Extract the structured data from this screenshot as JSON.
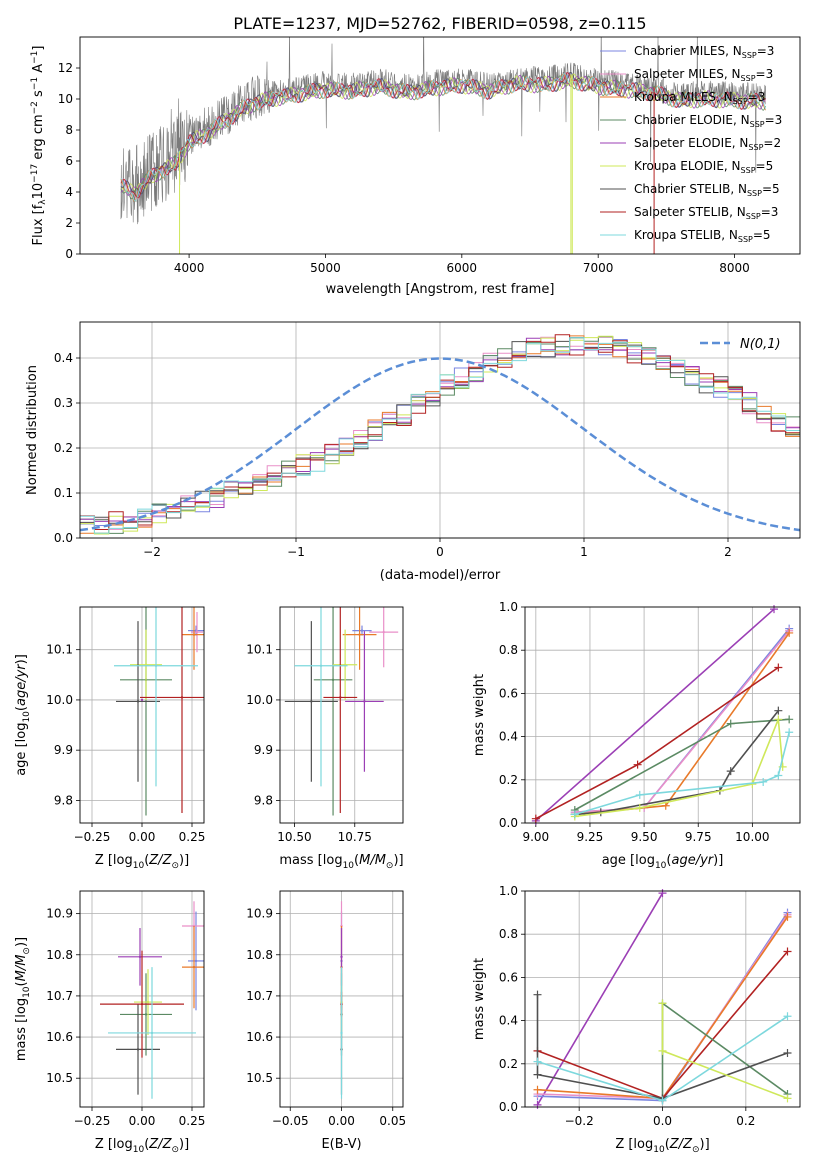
{
  "figure_title": "PLATE=1237, MJD=52762, FIBERID=0598, z=0.115",
  "colors": {
    "chabrier_miles": "#7b86e0",
    "salpeter_miles": "#e98fc8",
    "kroupa_miles": "#e87a2a",
    "chabrier_elodie": "#5b8a63",
    "salpeter_elodie": "#9b3fb5",
    "kroupa_elodie": "#cfe85a",
    "chabrier_stelib": "#505050",
    "salpeter_stelib": "#b22222",
    "kroupa_stelib": "#7dd8dd",
    "normal_curve": "#5b8ed6"
  },
  "chart_data": [
    {
      "id": "spectrum",
      "type": "line",
      "xlabel": "wavelength [Angstrom, rest frame]",
      "ylabel": "Flux [f_λ10^-17 erg cm^-2 s^-1 A^-1]",
      "xlim": [
        3200,
        8480
      ],
      "ylim": [
        0,
        14
      ],
      "xticks": [
        4000,
        5000,
        6000,
        7000,
        8000
      ],
      "yticks": [
        0,
        2,
        4,
        6,
        8,
        10,
        12
      ],
      "grid": false,
      "legend_position": "top-right",
      "wavelength_range": [
        3500,
        8230
      ],
      "continuum_x": [
        3500,
        3600,
        3700,
        3800,
        3900,
        4000,
        4100,
        4200,
        4300,
        4400,
        4500,
        4600,
        4800,
        5000,
        5200,
        5400,
        5600,
        5800,
        6000,
        6200,
        6400,
        6600,
        6800,
        7000,
        7200,
        7400,
        7600,
        7800,
        8000,
        8230
      ],
      "continuum_y": [
        4.8,
        4.3,
        5.2,
        5.8,
        6.2,
        7.6,
        8.0,
        8.6,
        9.2,
        9.8,
        10.2,
        10.4,
        10.7,
        11.0,
        10.9,
        11.2,
        10.8,
        11.1,
        11.3,
        10.9,
        11.4,
        11.3,
        11.6,
        11.2,
        11.0,
        10.8,
        10.3,
        10.4,
        10.3,
        10.2
      ],
      "series": [
        {
          "name": "Chabrier MILES, N_SSP=3",
          "label_main": "Chabrier MILES, N",
          "label_sub": "SSP",
          "label_tail": "=3",
          "color_key": "chabrier_miles"
        },
        {
          "name": "Salpeter MILES, N_SSP=3",
          "label_main": "Salpeter MILES, N",
          "label_sub": "SSP",
          "label_tail": "=3",
          "color_key": "salpeter_miles"
        },
        {
          "name": "Kroupa MILES, N_SSP=3",
          "label_main": "Kroupa MILES, N",
          "label_sub": "SSP",
          "label_tail": "=3",
          "color_key": "kroupa_miles"
        },
        {
          "name": "Chabrier ELODIE, N_SSP=3",
          "label_main": "Chabrier ELODIE, N",
          "label_sub": "SSP",
          "label_tail": "=3",
          "color_key": "chabrier_elodie"
        },
        {
          "name": "Salpeter ELODIE, N_SSP=2",
          "label_main": "Salpeter ELODIE, N",
          "label_sub": "SSP",
          "label_tail": "=2",
          "color_key": "salpeter_elodie"
        },
        {
          "name": "Kroupa ELODIE, N_SSP=5",
          "label_main": "Kroupa ELODIE, N",
          "label_sub": "SSP",
          "label_tail": "=5",
          "color_key": "kroupa_elodie"
        },
        {
          "name": "Chabrier STELIB, N_SSP=5",
          "label_main": "Chabrier STELIB, N",
          "label_sub": "SSP",
          "label_tail": "=5",
          "color_key": "chabrier_stelib"
        },
        {
          "name": "Salpeter STELIB, N_SSP=3",
          "label_main": "Salpeter STELIB, N",
          "label_sub": "SSP",
          "label_tail": "=3",
          "color_key": "salpeter_stelib"
        },
        {
          "name": "Kroupa STELIB, N_SSP=5",
          "label_main": "Kroupa STELIB, N",
          "label_sub": "SSP",
          "label_tail": "=5",
          "color_key": "kroupa_stelib"
        }
      ],
      "model_dropouts": [
        {
          "color_key": "kroupa_elodie",
          "x": 3930
        },
        {
          "color_key": "kroupa_elodie",
          "x": 6800
        },
        {
          "color_key": "kroupa_elodie",
          "x": 6810
        },
        {
          "color_key": "salpeter_stelib",
          "x": 7410
        }
      ]
    },
    {
      "id": "residual_histogram",
      "type": "histogram",
      "xlabel": "(data-model)/error",
      "ylabel": "Normed distribution",
      "xlim": [
        -2.5,
        2.5
      ],
      "ylim": [
        0,
        0.48
      ],
      "xticks": [
        -2,
        -1,
        0,
        1,
        2
      ],
      "xtick_labels": [
        "−2",
        "−1",
        "0",
        "1",
        "2"
      ],
      "yticks": [
        0.0,
        0.1,
        0.2,
        0.3,
        0.4
      ],
      "grid": true,
      "legend_position": "top-right",
      "legend_label": "N(0,1)",
      "bin_width": 0.1,
      "bin_start": -2.5,
      "base_values": [
        0.028,
        0.03,
        0.034,
        0.038,
        0.045,
        0.052,
        0.06,
        0.07,
        0.082,
        0.092,
        0.102,
        0.112,
        0.125,
        0.138,
        0.15,
        0.16,
        0.172,
        0.188,
        0.205,
        0.222,
        0.238,
        0.258,
        0.275,
        0.295,
        0.315,
        0.338,
        0.355,
        0.372,
        0.388,
        0.402,
        0.414,
        0.42,
        0.425,
        0.428,
        0.43,
        0.428,
        0.425,
        0.42,
        0.41,
        0.398,
        0.385,
        0.372,
        0.358,
        0.345,
        0.335,
        0.32,
        0.3,
        0.28,
        0.262,
        0.245,
        0.228,
        0.21,
        0.195,
        0.178,
        0.16,
        0.148,
        0.135,
        0.122,
        0.11,
        0.1,
        0.09,
        0.08,
        0.072,
        0.064,
        0.058,
        0.052,
        0.046,
        0.041,
        0.037,
        0.034,
        0.031,
        0.029,
        0.028,
        0.027,
        0.026,
        0.026,
        0.025,
        0.025,
        0.025,
        0.024,
        0.024,
        0.024,
        0.023,
        0.023,
        0.023,
        0.022,
        0.022,
        0.022,
        0.022,
        0.022
      ],
      "gaussian": {
        "mean": 0,
        "sigma": 1
      }
    },
    {
      "id": "age_vs_Z",
      "type": "errorbar",
      "xlabel": "Z [log10(Z/Z⊙)]",
      "ylabel": "age [log10(age/yr)]",
      "xlim": [
        -0.31,
        0.31
      ],
      "ylim": [
        9.755,
        10.185
      ],
      "xticks": [
        -0.25,
        0.0,
        0.25
      ],
      "xtick_labels": [
        "−0.25",
        "0.00",
        "0.25"
      ],
      "yticks": [
        9.8,
        9.9,
        10.0,
        10.1
      ],
      "grid": true,
      "points": [
        {
          "color_key": "chabrier_miles",
          "x": 0.27,
          "y": 10.138,
          "xerr": 0.04,
          "yerr": 0.01
        },
        {
          "color_key": "salpeter_miles",
          "x": 0.275,
          "y": 10.135,
          "xerr": 0.03,
          "yerr": 0.04
        },
        {
          "color_key": "kroupa_miles",
          "x": 0.26,
          "y": 10.13,
          "xerr": 0.06,
          "yerr": 0.07
        },
        {
          "color_key": "chabrier_elodie",
          "x": 0.02,
          "y": 10.04,
          "xerr": 0.13,
          "yerr": 0.27
        },
        {
          "color_key": "salpeter_elodie",
          "x": 0.0,
          "y": 10.0,
          "xerr": 0.0,
          "yerr": 0.0
        },
        {
          "color_key": "kroupa_elodie",
          "x": 0.02,
          "y": 10.07,
          "xerr": 0.08,
          "yerr": 0.07
        },
        {
          "color_key": "chabrier_stelib",
          "x": -0.02,
          "y": 9.997,
          "xerr": 0.11,
          "yerr": 0.16
        },
        {
          "color_key": "salpeter_stelib",
          "x": 0.2,
          "y": 10.005,
          "xerr": 0.21,
          "yerr": 0.23
        },
        {
          "color_key": "kroupa_stelib",
          "x": 0.07,
          "y": 10.068,
          "xerr": 0.21,
          "yerr": 0.24
        }
      ]
    },
    {
      "id": "age_vs_mass",
      "type": "errorbar",
      "xlabel": "mass [log10(M/M⊙)]",
      "ylabel": "",
      "xlim": [
        10.44,
        10.95
      ],
      "ylim": [
        9.755,
        10.185
      ],
      "xticks": [
        10.5,
        10.75
      ],
      "xtick_labels": [
        "10.50",
        "10.75"
      ],
      "yticks": [
        9.8,
        9.9,
        10.0,
        10.1
      ],
      "grid": true,
      "points": [
        {
          "color_key": "chabrier_miles",
          "x": 10.78,
          "y": 10.138,
          "xerr": 0.04,
          "yerr": 0.01
        },
        {
          "color_key": "salpeter_miles",
          "x": 10.87,
          "y": 10.135,
          "xerr": 0.06,
          "yerr": 0.07
        },
        {
          "color_key": "kroupa_miles",
          "x": 10.77,
          "y": 10.13,
          "xerr": 0.07,
          "yerr": 0.07
        },
        {
          "color_key": "chabrier_elodie",
          "x": 10.66,
          "y": 10.04,
          "xerr": 0.08,
          "yerr": 0.27
        },
        {
          "color_key": "salpeter_elodie",
          "x": 10.79,
          "y": 9.997,
          "xerr": 0.08,
          "yerr": 0.14
        },
        {
          "color_key": "kroupa_elodie",
          "x": 10.71,
          "y": 10.07,
          "xerr": 0.05,
          "yerr": 0.07
        },
        {
          "color_key": "chabrier_stelib",
          "x": 10.57,
          "y": 9.997,
          "xerr": 0.11,
          "yerr": 0.16
        },
        {
          "color_key": "salpeter_stelib",
          "x": 10.69,
          "y": 10.005,
          "xerr": 0.07,
          "yerr": 0.23
        },
        {
          "color_key": "kroupa_stelib",
          "x": 10.61,
          "y": 10.068,
          "xerr": 0.11,
          "yerr": 0.24
        }
      ]
    },
    {
      "id": "massweight_vs_age",
      "type": "line",
      "xlabel": "age [log10(age/yr)]",
      "ylabel": "mass weight",
      "xlim": [
        8.95,
        10.22
      ],
      "ylim": [
        0,
        1
      ],
      "xticks": [
        9.0,
        9.25,
        9.5,
        9.75,
        10.0
      ],
      "xtick_labels": [
        "9.00",
        "9.25",
        "9.50",
        "9.75",
        "10.00"
      ],
      "yticks": [
        0.0,
        0.2,
        0.4,
        0.6,
        0.8,
        1.0
      ],
      "grid": true,
      "series": [
        {
          "color_key": "salpeter_elodie",
          "x": [
            9.0,
            10.1
          ],
          "y": [
            0.01,
            0.99
          ]
        },
        {
          "color_key": "chabrier_miles",
          "x": [
            9.18,
            9.5,
            10.17
          ],
          "y": [
            0.05,
            0.07,
            0.9
          ]
        },
        {
          "color_key": "salpeter_miles",
          "x": [
            9.18,
            9.5,
            10.17
          ],
          "y": [
            0.05,
            0.07,
            0.89
          ]
        },
        {
          "color_key": "kroupa_miles",
          "x": [
            9.18,
            9.6,
            10.17
          ],
          "y": [
            0.04,
            0.08,
            0.88
          ]
        },
        {
          "color_key": "salpeter_stelib",
          "x": [
            9.0,
            9.47,
            10.12
          ],
          "y": [
            0.02,
            0.27,
            0.72
          ]
        },
        {
          "color_key": "chabrier_elodie",
          "x": [
            9.18,
            9.9,
            10.17
          ],
          "y": [
            0.06,
            0.46,
            0.48
          ]
        },
        {
          "color_key": "chabrier_stelib",
          "x": [
            9.18,
            9.3,
            9.85,
            9.9,
            10.12
          ],
          "y": [
            0.04,
            0.05,
            0.15,
            0.24,
            0.52
          ]
        },
        {
          "color_key": "kroupa_elodie",
          "x": [
            9.18,
            9.48,
            10.0,
            10.12,
            10.14
          ],
          "y": [
            0.03,
            0.07,
            0.18,
            0.48,
            0.26
          ]
        },
        {
          "color_key": "kroupa_stelib",
          "x": [
            9.18,
            9.48,
            10.05,
            10.12,
            10.17
          ],
          "y": [
            0.04,
            0.13,
            0.19,
            0.22,
            0.42
          ]
        }
      ]
    },
    {
      "id": "mass_vs_Z",
      "type": "errorbar",
      "xlabel": "Z [log10(Z/Z⊙)]",
      "ylabel": "mass [log10(M/M⊙)]",
      "xlim": [
        -0.31,
        0.31
      ],
      "ylim": [
        10.43,
        10.955
      ],
      "xticks": [
        -0.25,
        0.0,
        0.25
      ],
      "xtick_labels": [
        "−0.25",
        "0.00",
        "0.25"
      ],
      "yticks": [
        10.5,
        10.6,
        10.7,
        10.8,
        10.9
      ],
      "grid": true,
      "points": [
        {
          "color_key": "chabrier_miles",
          "x": 0.27,
          "y": 10.785,
          "xerr": 0.04,
          "yerr": 0.12
        },
        {
          "color_key": "salpeter_miles",
          "x": 0.26,
          "y": 10.87,
          "xerr": 0.06,
          "yerr": 0.06
        },
        {
          "color_key": "kroupa_miles",
          "x": 0.26,
          "y": 10.77,
          "xerr": 0.06,
          "yerr": 0.1
        },
        {
          "color_key": "chabrier_elodie",
          "x": 0.02,
          "y": 10.655,
          "xerr": 0.13,
          "yerr": 0.1
        },
        {
          "color_key": "salpeter_elodie",
          "x": -0.01,
          "y": 10.795,
          "xerr": 0.11,
          "yerr": 0.07
        },
        {
          "color_key": "kroupa_elodie",
          "x": 0.03,
          "y": 10.685,
          "xerr": 0.07,
          "yerr": 0.08
        },
        {
          "color_key": "chabrier_stelib",
          "x": -0.02,
          "y": 10.57,
          "xerr": 0.11,
          "yerr": 0.11
        },
        {
          "color_key": "salpeter_stelib",
          "x": 0.0,
          "y": 10.68,
          "xerr": 0.21,
          "yerr": 0.13
        },
        {
          "color_key": "kroupa_stelib",
          "x": 0.05,
          "y": 10.61,
          "xerr": 0.22,
          "yerr": 0.16
        }
      ]
    },
    {
      "id": "mass_vs_ebv",
      "type": "errorbar",
      "xlabel": "E(B-V)",
      "ylabel": "",
      "xlim": [
        -0.06,
        0.06
      ],
      "ylim": [
        10.43,
        10.955
      ],
      "xticks": [
        -0.05,
        0.0,
        0.05
      ],
      "xtick_labels": [
        "−0.05",
        "0.00",
        "0.05"
      ],
      "yticks": [
        10.5,
        10.6,
        10.7,
        10.8,
        10.9
      ],
      "grid": true,
      "points": [
        {
          "color_key": "chabrier_miles",
          "x": 0.0,
          "y": 10.785,
          "xerr": 0,
          "yerr": 0.12
        },
        {
          "color_key": "salpeter_miles",
          "x": 0.0,
          "y": 10.87,
          "xerr": 0,
          "yerr": 0.06
        },
        {
          "color_key": "kroupa_miles",
          "x": 0.0,
          "y": 10.77,
          "xerr": 0,
          "yerr": 0.1
        },
        {
          "color_key": "chabrier_elodie",
          "x": 0.0,
          "y": 10.655,
          "xerr": 0,
          "yerr": 0.1
        },
        {
          "color_key": "salpeter_elodie",
          "x": 0.0,
          "y": 10.795,
          "xerr": 0,
          "yerr": 0.07
        },
        {
          "color_key": "kroupa_elodie",
          "x": 0.0,
          "y": 10.685,
          "xerr": 0,
          "yerr": 0.08
        },
        {
          "color_key": "chabrier_stelib",
          "x": 0.0,
          "y": 10.57,
          "xerr": 0,
          "yerr": 0.11
        },
        {
          "color_key": "salpeter_stelib",
          "x": 0.0,
          "y": 10.68,
          "xerr": 0,
          "yerr": 0.03
        },
        {
          "color_key": "kroupa_stelib",
          "x": 0.0,
          "y": 10.61,
          "xerr": 0,
          "yerr": 0.16
        }
      ]
    },
    {
      "id": "massweight_vs_Z",
      "type": "line",
      "xlabel": "Z [log10(Z/Z⊙)]",
      "ylabel": "mass weight",
      "xlim": [
        -0.33,
        0.33
      ],
      "ylim": [
        0,
        1
      ],
      "xticks": [
        -0.2,
        0.0,
        0.2
      ],
      "xtick_labels": [
        "−0.2",
        "0.0",
        "0.2"
      ],
      "yticks": [
        0.0,
        0.2,
        0.4,
        0.6,
        0.8,
        1.0
      ],
      "grid": true,
      "series": [
        {
          "color_key": "salpeter_elodie",
          "x": [
            -0.3,
            0.0
          ],
          "y": [
            0.01,
            0.99
          ]
        },
        {
          "color_key": "chabrier_miles",
          "x": [
            -0.3,
            0.0,
            0.3
          ],
          "y": [
            0.05,
            0.03,
            0.9
          ]
        },
        {
          "color_key": "salpeter_miles",
          "x": [
            -0.3,
            0.0,
            0.3
          ],
          "y": [
            0.06,
            0.04,
            0.89
          ]
        },
        {
          "color_key": "kroupa_miles",
          "x": [
            -0.3,
            0.0,
            0.3
          ],
          "y": [
            0.08,
            0.04,
            0.88
          ]
        },
        {
          "color_key": "salpeter_stelib",
          "x": [
            -0.3,
            0.0,
            0.3
          ],
          "y": [
            0.26,
            0.04,
            0.72
          ]
        },
        {
          "color_key": "chabrier_elodie",
          "x": [
            0.0,
            0.0,
            0.3
          ],
          "y": [
            0.03,
            0.48,
            0.06
          ]
        },
        {
          "color_key": "chabrier_stelib",
          "x": [
            -0.3,
            -0.3,
            0.0,
            0.3
          ],
          "y": [
            0.52,
            0.15,
            0.04,
            0.25
          ]
        },
        {
          "color_key": "kroupa_elodie",
          "x": [
            0.0,
            0.0,
            0.3
          ],
          "y": [
            0.48,
            0.26,
            0.04
          ]
        },
        {
          "color_key": "kroupa_stelib",
          "x": [
            -0.3,
            0.0,
            0.3
          ],
          "y": [
            0.21,
            0.03,
            0.42
          ]
        }
      ]
    }
  ]
}
